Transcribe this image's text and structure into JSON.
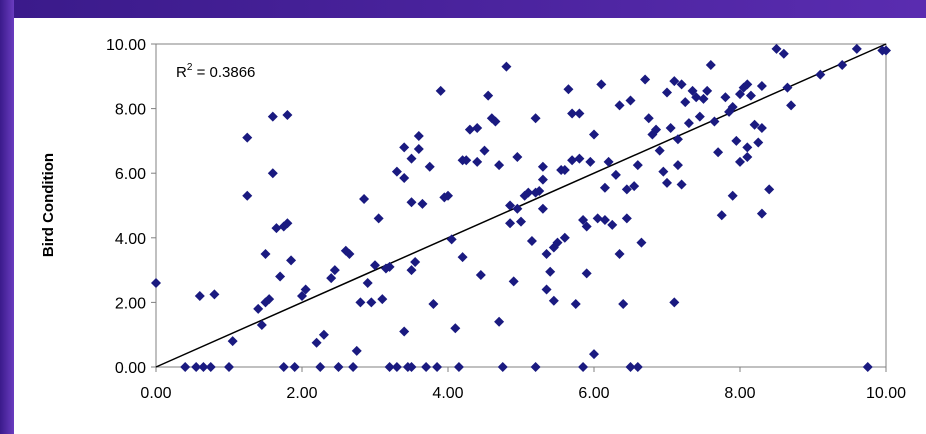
{
  "chart_data": {
    "type": "scatter",
    "ylabel": "Bird Condition",
    "xlabel": "",
    "xlim": [
      0,
      10
    ],
    "ylim": [
      0,
      10
    ],
    "x_ticks": [
      "0.00",
      "2.00",
      "4.00",
      "6.00",
      "8.00",
      "10.00"
    ],
    "y_ticks": [
      "0.00",
      "2.00",
      "4.00",
      "6.00",
      "8.00",
      "10.00"
    ],
    "annotation": {
      "r2_prefix": "R",
      "r2_sup": "2",
      "r2_value": " = 0.3866"
    },
    "trendline": {
      "x": [
        0,
        10
      ],
      "y": [
        0,
        10
      ]
    },
    "marker_color": "#1a1a80",
    "points": [
      [
        0.0,
        2.6
      ],
      [
        0.4,
        0.0
      ],
      [
        0.55,
        0.0
      ],
      [
        0.6,
        2.2
      ],
      [
        0.65,
        0.0
      ],
      [
        0.75,
        0.0
      ],
      [
        0.8,
        2.25
      ],
      [
        1.0,
        0.0
      ],
      [
        1.05,
        0.8
      ],
      [
        1.25,
        7.1
      ],
      [
        1.25,
        5.3
      ],
      [
        1.4,
        1.8
      ],
      [
        1.45,
        1.3
      ],
      [
        1.5,
        2.0
      ],
      [
        1.5,
        3.5
      ],
      [
        1.55,
        2.1
      ],
      [
        1.6,
        6.0
      ],
      [
        1.6,
        7.75
      ],
      [
        1.65,
        4.3
      ],
      [
        1.7,
        2.8
      ],
      [
        1.75,
        4.35
      ],
      [
        1.75,
        0.0
      ],
      [
        1.8,
        4.45
      ],
      [
        1.8,
        7.8
      ],
      [
        1.85,
        3.3
      ],
      [
        1.9,
        0.0
      ],
      [
        2.0,
        2.2
      ],
      [
        2.05,
        2.4
      ],
      [
        2.2,
        0.75
      ],
      [
        2.25,
        0.0
      ],
      [
        2.3,
        1.0
      ],
      [
        2.4,
        2.75
      ],
      [
        2.45,
        3.0
      ],
      [
        2.5,
        0.0
      ],
      [
        2.6,
        3.6
      ],
      [
        2.65,
        3.5
      ],
      [
        2.7,
        0.0
      ],
      [
        2.75,
        0.5
      ],
      [
        2.8,
        2.0
      ],
      [
        2.85,
        5.2
      ],
      [
        2.9,
        2.6
      ],
      [
        2.95,
        2.0
      ],
      [
        3.0,
        3.15
      ],
      [
        3.05,
        4.6
      ],
      [
        3.1,
        2.1
      ],
      [
        3.15,
        3.05
      ],
      [
        3.2,
        0.0
      ],
      [
        3.3,
        0.0
      ],
      [
        3.3,
        6.05
      ],
      [
        3.4,
        6.8
      ],
      [
        3.4,
        5.85
      ],
      [
        3.4,
        1.1
      ],
      [
        3.45,
        0.0
      ],
      [
        3.5,
        5.1
      ],
      [
        3.5,
        6.45
      ],
      [
        3.5,
        0.0
      ],
      [
        3.55,
        3.25
      ],
      [
        3.6,
        6.75
      ],
      [
        3.6,
        7.15
      ],
      [
        3.65,
        5.05
      ],
      [
        3.7,
        0.0
      ],
      [
        3.75,
        6.2
      ],
      [
        3.8,
        1.95
      ],
      [
        3.85,
        0.0
      ],
      [
        3.9,
        8.55
      ],
      [
        3.95,
        5.25
      ],
      [
        4.0,
        5.3
      ],
      [
        4.05,
        3.95
      ],
      [
        4.1,
        1.2
      ],
      [
        4.15,
        0.0
      ],
      [
        4.2,
        3.4
      ],
      [
        4.25,
        6.4
      ],
      [
        4.3,
        7.35
      ],
      [
        4.4,
        7.4
      ],
      [
        4.4,
        6.35
      ],
      [
        4.45,
        2.85
      ],
      [
        4.5,
        6.7
      ],
      [
        4.55,
        8.4
      ],
      [
        4.6,
        7.7
      ],
      [
        4.65,
        7.6
      ],
      [
        4.7,
        6.25
      ],
      [
        4.7,
        1.4
      ],
      [
        4.75,
        0.0
      ],
      [
        4.8,
        9.3
      ],
      [
        4.85,
        5.0
      ],
      [
        4.85,
        4.45
      ],
      [
        4.9,
        2.65
      ],
      [
        4.95,
        6.5
      ],
      [
        5.0,
        4.5
      ],
      [
        5.05,
        5.3
      ],
      [
        5.1,
        5.4
      ],
      [
        5.15,
        3.9
      ],
      [
        5.2,
        7.7
      ],
      [
        5.2,
        0.0
      ],
      [
        5.25,
        5.45
      ],
      [
        5.3,
        6.2
      ],
      [
        5.3,
        5.8
      ],
      [
        5.35,
        3.5
      ],
      [
        5.35,
        2.4
      ],
      [
        5.4,
        2.95
      ],
      [
        5.45,
        2.05
      ],
      [
        5.45,
        3.7
      ],
      [
        5.5,
        3.85
      ],
      [
        5.55,
        6.1
      ],
      [
        5.6,
        6.1
      ],
      [
        5.6,
        4.0
      ],
      [
        5.65,
        8.6
      ],
      [
        5.7,
        6.4
      ],
      [
        5.7,
        7.85
      ],
      [
        5.75,
        1.95
      ],
      [
        5.8,
        7.85
      ],
      [
        5.8,
        6.45
      ],
      [
        5.85,
        4.55
      ],
      [
        5.85,
        0.0
      ],
      [
        5.9,
        2.9
      ],
      [
        5.95,
        6.35
      ],
      [
        6.0,
        0.4
      ],
      [
        6.0,
        7.2
      ],
      [
        6.05,
        4.6
      ],
      [
        6.1,
        8.75
      ],
      [
        6.15,
        5.55
      ],
      [
        6.2,
        6.35
      ],
      [
        6.25,
        4.4
      ],
      [
        6.3,
        5.95
      ],
      [
        6.35,
        3.5
      ],
      [
        6.35,
        8.1
      ],
      [
        6.4,
        1.95
      ],
      [
        6.45,
        4.6
      ],
      [
        6.45,
        5.5
      ],
      [
        6.5,
        8.25
      ],
      [
        6.5,
        0.0
      ],
      [
        6.55,
        5.6
      ],
      [
        6.6,
        0.0
      ],
      [
        6.6,
        6.25
      ],
      [
        6.65,
        3.85
      ],
      [
        6.7,
        8.9
      ],
      [
        6.75,
        7.7
      ],
      [
        6.8,
        7.2
      ],
      [
        6.85,
        7.35
      ],
      [
        6.9,
        6.7
      ],
      [
        6.95,
        6.05
      ],
      [
        7.0,
        5.7
      ],
      [
        7.0,
        8.5
      ],
      [
        7.05,
        7.4
      ],
      [
        7.1,
        8.85
      ],
      [
        7.1,
        2.0
      ],
      [
        7.15,
        7.05
      ],
      [
        7.15,
        6.25
      ],
      [
        7.2,
        5.65
      ],
      [
        7.2,
        8.75
      ],
      [
        7.25,
        8.2
      ],
      [
        7.3,
        7.55
      ],
      [
        7.35,
        8.55
      ],
      [
        7.4,
        8.35
      ],
      [
        7.45,
        7.75
      ],
      [
        7.5,
        8.3
      ],
      [
        7.55,
        8.55
      ],
      [
        7.6,
        9.35
      ],
      [
        7.65,
        7.6
      ],
      [
        7.7,
        6.65
      ],
      [
        7.75,
        4.7
      ],
      [
        7.8,
        8.35
      ],
      [
        7.85,
        7.9
      ],
      [
        7.9,
        8.05
      ],
      [
        7.95,
        7.0
      ],
      [
        8.0,
        6.35
      ],
      [
        8.0,
        8.45
      ],
      [
        8.05,
        8.65
      ],
      [
        8.1,
        8.75
      ],
      [
        8.1,
        6.5
      ],
      [
        8.15,
        8.4
      ],
      [
        8.2,
        7.5
      ],
      [
        8.25,
        6.95
      ],
      [
        8.3,
        4.75
      ],
      [
        8.3,
        8.7
      ],
      [
        8.4,
        5.5
      ],
      [
        8.5,
        9.85
      ],
      [
        8.6,
        9.7
      ],
      [
        8.65,
        8.65
      ],
      [
        8.7,
        8.1
      ],
      [
        9.1,
        9.05
      ],
      [
        9.4,
        9.35
      ],
      [
        9.6,
        9.85
      ],
      [
        9.75,
        0.0
      ],
      [
        9.95,
        9.8
      ],
      [
        10.0,
        9.8
      ],
      [
        7.9,
        5.3
      ],
      [
        8.1,
        6.8
      ],
      [
        8.3,
        7.4
      ],
      [
        6.15,
        4.55
      ],
      [
        5.9,
        4.35
      ],
      [
        5.3,
        4.9
      ],
      [
        5.2,
        5.4
      ],
      [
        4.95,
        4.9
      ],
      [
        4.2,
        6.4
      ],
      [
        3.5,
        3.0
      ],
      [
        3.2,
        3.1
      ]
    ]
  }
}
